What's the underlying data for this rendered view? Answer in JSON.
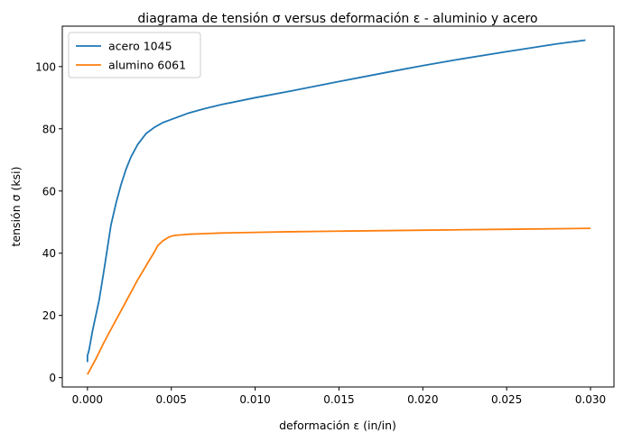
{
  "chart_data": {
    "type": "line",
    "title": "diagrama de tensión σ versus deformación ε - aluminio y acero",
    "xlabel": "deformación ε (in/in)",
    "ylabel": "tensión σ (ksi)",
    "xlim": [
      -0.0015,
      0.0314
    ],
    "ylim": [
      -3,
      113
    ],
    "xticks": [
      0.0,
      0.005,
      0.01,
      0.015,
      0.02,
      0.025,
      0.03
    ],
    "xtick_labels": [
      "0.000",
      "0.005",
      "0.010",
      "0.015",
      "0.020",
      "0.025",
      "0.030"
    ],
    "yticks": [
      0,
      20,
      40,
      60,
      80,
      100
    ],
    "ytick_labels": [
      "0",
      "20",
      "40",
      "60",
      "80",
      "100"
    ],
    "grid": false,
    "legend_position": "top-left",
    "series": [
      {
        "name": "acero 1045",
        "color": "#1f77b4",
        "x": [
          0.0,
          0.0,
          0.0001,
          0.0002,
          0.0003,
          0.0005,
          0.0007,
          0.001,
          0.0012,
          0.0014,
          0.0017,
          0.002,
          0.0023,
          0.0026,
          0.003,
          0.0035,
          0.004,
          0.0045,
          0.005,
          0.006,
          0.007,
          0.008,
          0.01,
          0.012,
          0.015,
          0.018,
          0.02,
          0.022,
          0.025,
          0.028,
          0.0297
        ],
        "y": [
          5,
          7,
          9,
          12,
          15,
          20,
          25,
          35,
          42,
          49,
          56,
          62,
          67,
          71,
          75,
          78.5,
          80.5,
          82,
          83,
          85,
          86.5,
          87.8,
          90,
          92,
          95.2,
          98.3,
          100.3,
          102.2,
          104.8,
          107.3,
          108.5
        ]
      },
      {
        "name": "alumino 6061",
        "color": "#ff7f0e",
        "x": [
          0.0,
          0.0005,
          0.001,
          0.0015,
          0.002,
          0.0025,
          0.003,
          0.0035,
          0.004,
          0.0042,
          0.0045,
          0.0048,
          0.005,
          0.0053,
          0.0056,
          0.006,
          0.007,
          0.008,
          0.01,
          0.012,
          0.015,
          0.02,
          0.025,
          0.03
        ],
        "y": [
          1,
          6,
          11.5,
          16.5,
          21.5,
          26.5,
          31.5,
          36,
          40.5,
          42.5,
          44,
          45,
          45.5,
          45.8,
          45.9,
          46.1,
          46.3,
          46.5,
          46.7,
          46.9,
          47.1,
          47.4,
          47.7,
          48
        ]
      }
    ]
  }
}
